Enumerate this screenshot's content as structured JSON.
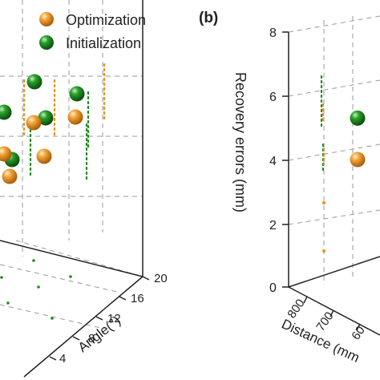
{
  "chart_data": [
    {
      "type": "scatter",
      "dimensions": "3d",
      "title": "",
      "legend": {
        "placement": "top-left"
      },
      "series": [
        {
          "name": "Optimization",
          "color": "#e8901c"
        },
        {
          "name": "Initialization",
          "color": "#1f8a1f"
        }
      ],
      "y_axis": {
        "label": "Angle(°)",
        "ticks": [
          "4",
          "8",
          "12",
          "16",
          "20"
        ]
      },
      "points": {
        "optimization_large": [
          [
            42,
            153
          ],
          [
            55,
            195
          ],
          [
            94,
            146
          ],
          [
            5,
            192
          ],
          [
            12,
            220
          ]
        ],
        "initialization_large": [
          [
            43,
            102
          ],
          [
            96,
            117
          ],
          [
            57,
            147
          ],
          [
            5,
            140
          ],
          [
            15,
            199
          ]
        ],
        "stems": [
          [
            30,
            130
          ],
          [
            38,
            180
          ],
          [
            68,
            130
          ],
          [
            108,
            185
          ],
          [
            130,
            110
          ],
          [
            110,
            145
          ]
        ]
      }
    },
    {
      "type": "scatter",
      "dimensions": "3d",
      "panel_label": "(b)",
      "title": "",
      "z_axis": {
        "label": "Recovery errors (mm)",
        "ticks": [
          "0",
          "2",
          "4",
          "6",
          "8"
        ],
        "range": [
          0,
          8
        ]
      },
      "x_axis": {
        "label": "Distance (mm",
        "ticks": [
          "800",
          "700",
          "60"
        ]
      },
      "series": [
        {
          "name": "Optimization",
          "color": "#e8901c"
        },
        {
          "name": "Initialization",
          "color": "#1f8a1f"
        }
      ],
      "points": {
        "optimization_large": [
          [
            446,
            4.0
          ]
        ],
        "initialization_large": [
          [
            446,
            5.3
          ]
        ]
      }
    }
  ]
}
